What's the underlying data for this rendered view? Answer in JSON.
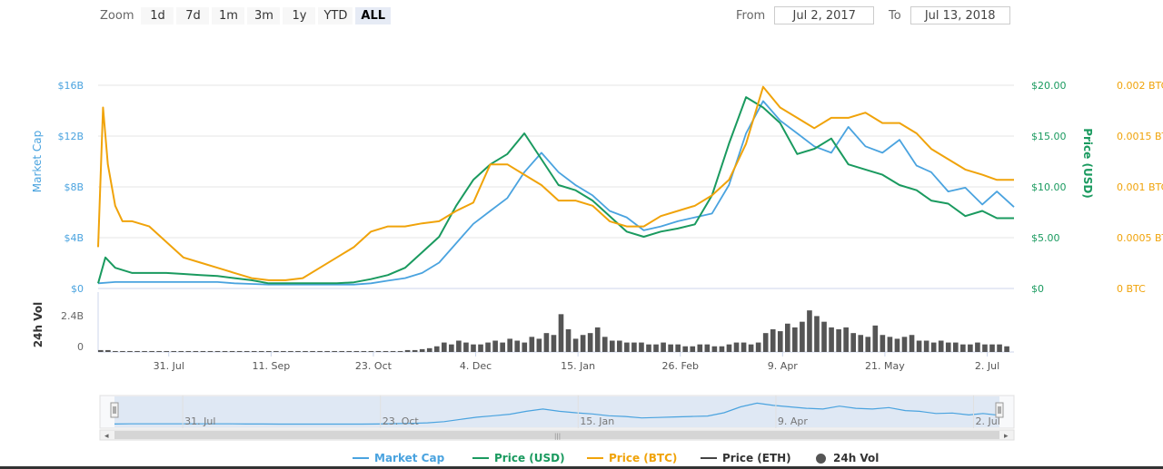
{
  "zoom": {
    "label": "Zoom",
    "buttons": [
      "1d",
      "7d",
      "1m",
      "3m",
      "1y",
      "YTD",
      "ALL"
    ],
    "active": "ALL"
  },
  "range": {
    "from_label": "From",
    "from_value": "Jul 2, 2017",
    "to_label": "To",
    "to_value": "Jul 13, 2018"
  },
  "colors": {
    "market_cap": "#4aa3df",
    "price_usd": "#1a9a5f",
    "price_btc": "#f0a30a",
    "price_eth": "#444444",
    "volume": "#555555",
    "navigator_fill": "#cfdcf0"
  },
  "legend": [
    {
      "label": "Market Cap",
      "color": "#4aa3df",
      "icon": "line"
    },
    {
      "label": "Price (USD)",
      "color": "#1a9a5f",
      "icon": "line"
    },
    {
      "label": "Price (BTC)",
      "color": "#f0a30a",
      "icon": "line"
    },
    {
      "label": "Price (ETH)",
      "color": "#444444",
      "icon": "line"
    },
    {
      "label": "24h Vol",
      "color": "#555555",
      "icon": "dot"
    }
  ],
  "chart_data": {
    "type": "line",
    "x_tick_labels": [
      "31. Jul",
      "11. Sep",
      "23. Oct",
      "4. Dec",
      "15. Jan",
      "26. Feb",
      "9. Apr",
      "21. May",
      "2. Jul"
    ],
    "x_range": [
      "2017-07-02",
      "2018-07-13"
    ],
    "y_axes": {
      "market_cap": {
        "title": "Market Cap",
        "ticks": [
          "$0",
          "$4B",
          "$8B",
          "$12B",
          "$16B"
        ],
        "range": [
          0,
          16
        ]
      },
      "price_usd": {
        "title": "Price (USD)",
        "ticks": [
          "$0",
          "$5.00",
          "$10.00",
          "$15.00",
          "$20.00"
        ],
        "range": [
          0,
          20
        ]
      },
      "price_btc": {
        "title": "",
        "ticks": [
          "0 BTC",
          "0.0005 BTC",
          "0.001 BTC",
          "0.0015 BTC",
          "0.002 BTC"
        ],
        "range": [
          0,
          0.002
        ]
      },
      "volume": {
        "title": "24h Vol",
        "ticks": [
          "0",
          "2.4B"
        ],
        "range": [
          0,
          2.4
        ]
      }
    },
    "series": [
      {
        "name": "Market Cap",
        "unit": "B USD",
        "x": [
          0,
          7,
          14,
          21,
          28,
          35,
          42,
          49,
          56,
          63,
          70,
          77,
          84,
          91,
          98,
          105,
          112,
          119,
          126,
          133,
          140,
          147,
          154,
          161,
          168,
          175,
          182,
          189,
          196,
          203,
          210,
          217,
          224,
          231,
          238,
          245,
          252,
          259,
          266,
          273,
          280,
          287,
          294,
          301,
          308,
          315,
          322,
          329,
          336,
          342,
          349,
          356,
          363,
          369,
          376
        ],
        "values": [
          0.4,
          0.5,
          0.5,
          0.5,
          0.5,
          0.5,
          0.5,
          0.5,
          0.4,
          0.35,
          0.3,
          0.3,
          0.3,
          0.3,
          0.3,
          0.3,
          0.4,
          0.6,
          0.8,
          1.2,
          2.0,
          3.5,
          5.0,
          6.0,
          7.0,
          9.0,
          10.5,
          9.0,
          8.0,
          7.2,
          6.0,
          5.5,
          4.5,
          4.8,
          5.2,
          5.5,
          5.8,
          8.0,
          12.0,
          14.5,
          13.0,
          12.0,
          11.0,
          10.5,
          12.5,
          11.0,
          10.5,
          11.5,
          9.5,
          9.0,
          7.5,
          7.8,
          6.5,
          7.5,
          6.3
        ]
      },
      {
        "name": "Price (USD)",
        "unit": "USD",
        "x": [
          0,
          3,
          7,
          14,
          21,
          28,
          35,
          42,
          49,
          56,
          63,
          70,
          77,
          84,
          91,
          98,
          105,
          112,
          119,
          126,
          133,
          140,
          147,
          154,
          161,
          168,
          175,
          182,
          189,
          196,
          203,
          210,
          217,
          224,
          231,
          238,
          245,
          252,
          259,
          266,
          273,
          280,
          287,
          294,
          301,
          308,
          315,
          322,
          329,
          336,
          342,
          349,
          356,
          363,
          369,
          376
        ],
        "values": [
          0.5,
          3.0,
          2.0,
          1.5,
          1.5,
          1.5,
          1.4,
          1.3,
          1.2,
          1.0,
          0.8,
          0.5,
          0.5,
          0.5,
          0.5,
          0.5,
          0.6,
          0.9,
          1.3,
          2.0,
          3.5,
          5.0,
          8.0,
          10.5,
          12.0,
          13.0,
          15.0,
          12.5,
          10.0,
          9.5,
          8.5,
          7.0,
          5.5,
          5.0,
          5.5,
          5.8,
          6.2,
          9.0,
          14.0,
          18.5,
          17.5,
          16.0,
          13.0,
          13.5,
          14.5,
          12.0,
          11.5,
          11.0,
          10.0,
          9.5,
          8.5,
          8.2,
          7.0,
          7.5,
          6.8,
          6.8
        ]
      },
      {
        "name": "Price (BTC)",
        "unit": "BTC",
        "x": [
          0,
          2,
          4,
          7,
          10,
          14,
          21,
          28,
          35,
          42,
          49,
          56,
          63,
          70,
          77,
          84,
          91,
          98,
          105,
          112,
          119,
          126,
          133,
          140,
          147,
          154,
          161,
          168,
          175,
          182,
          189,
          196,
          203,
          210,
          217,
          224,
          231,
          238,
          245,
          252,
          259,
          266,
          273,
          280,
          287,
          294,
          301,
          308,
          315,
          322,
          329,
          336,
          342,
          349,
          356,
          363,
          369,
          376
        ],
        "values": [
          0.0004,
          0.00175,
          0.0012,
          0.0008,
          0.00065,
          0.00065,
          0.0006,
          0.00045,
          0.0003,
          0.00025,
          0.0002,
          0.00015,
          0.0001,
          8e-05,
          8e-05,
          0.0001,
          0.0002,
          0.0003,
          0.0004,
          0.00055,
          0.0006,
          0.0006,
          0.00063,
          0.00065,
          0.00075,
          0.00083,
          0.0012,
          0.0012,
          0.0011,
          0.001,
          0.00085,
          0.00085,
          0.0008,
          0.00065,
          0.0006,
          0.0006,
          0.0007,
          0.00075,
          0.0008,
          0.0009,
          0.00105,
          0.0014,
          0.00195,
          0.00175,
          0.00165,
          0.00155,
          0.00165,
          0.00165,
          0.0017,
          0.0016,
          0.0016,
          0.0015,
          0.00135,
          0.00125,
          0.00115,
          0.0011,
          0.00105,
          0.00105
        ]
      },
      {
        "name": "24h Vol",
        "unit": "B USD",
        "type": "bar",
        "x_step_days": 3,
        "values": [
          0.1,
          0.1,
          0.05,
          0.05,
          0.05,
          0.05,
          0.05,
          0.05,
          0.05,
          0.05,
          0.05,
          0.05,
          0.05,
          0.05,
          0.05,
          0.05,
          0.05,
          0.05,
          0.05,
          0.05,
          0.05,
          0.05,
          0.05,
          0.05,
          0.05,
          0.05,
          0.05,
          0.05,
          0.05,
          0.05,
          0.05,
          0.05,
          0.05,
          0.05,
          0.05,
          0.05,
          0.05,
          0.05,
          0.05,
          0.05,
          0.05,
          0.05,
          0.1,
          0.1,
          0.15,
          0.2,
          0.3,
          0.5,
          0.4,
          0.6,
          0.5,
          0.4,
          0.4,
          0.5,
          0.6,
          0.5,
          0.7,
          0.6,
          0.5,
          0.8,
          0.7,
          1.0,
          0.9,
          2.0,
          1.2,
          0.7,
          0.9,
          1.0,
          1.3,
          0.8,
          0.6,
          0.6,
          0.5,
          0.5,
          0.5,
          0.4,
          0.4,
          0.5,
          0.4,
          0.4,
          0.3,
          0.3,
          0.4,
          0.4,
          0.3,
          0.3,
          0.4,
          0.5,
          0.5,
          0.4,
          0.5,
          1.0,
          1.2,
          1.1,
          1.5,
          1.3,
          1.6,
          2.2,
          1.9,
          1.6,
          1.3,
          1.2,
          1.3,
          1.0,
          0.9,
          0.8,
          1.4,
          0.9,
          0.8,
          0.7,
          0.8,
          0.9,
          0.6,
          0.6,
          0.5,
          0.6,
          0.5,
          0.5,
          0.4,
          0.4,
          0.5,
          0.4,
          0.4,
          0.4,
          0.3
        ]
      }
    ]
  }
}
